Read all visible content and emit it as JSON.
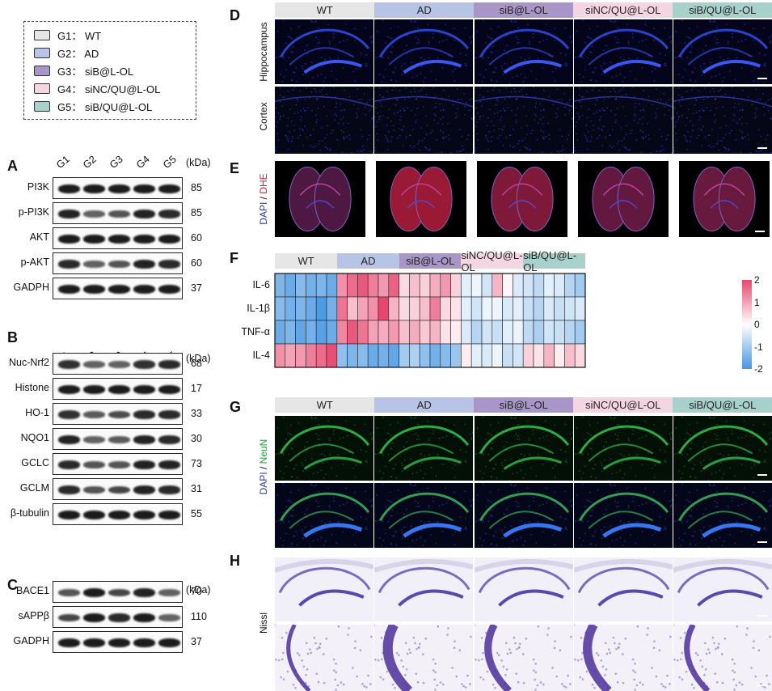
{
  "legend": [
    {
      "label": "G1： WT",
      "color": "#e6e6e6"
    },
    {
      "label": "G2： AD",
      "color": "#b8c4e6"
    },
    {
      "label": "G3： siB@L-OL",
      "color": "#a996c9"
    },
    {
      "label": "G4： siNC/QU@L-OL",
      "color": "#f3d6e2"
    },
    {
      "label": "G5： siB/QU@L-OL",
      "color": "#a8d1cc"
    }
  ],
  "panels": {
    "A": "A",
    "B": "B",
    "C": "C",
    "D": "D",
    "E": "E",
    "F": "F",
    "G": "G",
    "H": "H"
  },
  "lanes": [
    "G1",
    "G2",
    "G3",
    "G4",
    "G5"
  ],
  "kda_unit": "(kDa)",
  "groups": [
    "WT",
    "AD",
    "siB@L-OL",
    "siNC/QU@L-OL",
    "siB/QU@L-OL"
  ],
  "groups_h": [
    "WT",
    "AD",
    "siB@L-OL",
    "siNC/QU@L-OL",
    "siB/QU@L-OL"
  ],
  "blotA": [
    {
      "name": "PI3K",
      "kda": "85",
      "levels": [
        1,
        1,
        1,
        1,
        1
      ]
    },
    {
      "name": "p-PI3K",
      "kda": "85",
      "levels": [
        0.95,
        0.5,
        0.6,
        0.95,
        0.9
      ]
    },
    {
      "name": "AKT",
      "kda": "60",
      "levels": [
        1,
        1,
        1,
        1,
        1
      ]
    },
    {
      "name": "p-AKT",
      "kda": "60",
      "levels": [
        0.9,
        0.5,
        0.6,
        0.95,
        0.9
      ]
    },
    {
      "name": "GADPH",
      "kda": "37",
      "levels": [
        1,
        1,
        1,
        1,
        1
      ]
    }
  ],
  "blotB": [
    {
      "name": "Nuc-Nrf2",
      "kda": "68",
      "levels": [
        0.85,
        0.5,
        0.5,
        0.85,
        0.9
      ]
    },
    {
      "name": "Histone",
      "kda": "17",
      "levels": [
        1,
        1,
        1,
        1,
        1
      ]
    },
    {
      "name": "HO-1",
      "kda": "33",
      "levels": [
        0.85,
        0.55,
        0.65,
        0.9,
        0.9
      ]
    },
    {
      "name": "NQO1",
      "kda": "30",
      "levels": [
        0.95,
        0.5,
        0.55,
        0.95,
        0.9
      ]
    },
    {
      "name": "GCLC",
      "kda": "73",
      "levels": [
        0.9,
        0.6,
        0.6,
        0.95,
        0.95
      ]
    },
    {
      "name": "GCLM",
      "kda": "31",
      "levels": [
        0.9,
        0.6,
        0.7,
        0.95,
        0.9
      ]
    },
    {
      "name": "β-tubulin",
      "kda": "55",
      "levels": [
        1,
        1,
        1,
        1,
        1
      ]
    }
  ],
  "blotC": [
    {
      "name": "BACE1",
      "kda": "70",
      "levels": [
        0.6,
        1,
        0.7,
        0.95,
        0.5
      ]
    },
    {
      "name": "sAPPβ",
      "kda": "110",
      "levels": [
        0.7,
        1,
        0.9,
        1,
        0.5
      ]
    },
    {
      "name": "GADPH",
      "kda": "37",
      "levels": [
        1,
        1,
        1,
        1,
        1
      ]
    }
  ],
  "D": {
    "row_labels": [
      "Hippocampus",
      "Cortex"
    ]
  },
  "E": {
    "label_dapi": "DAPI",
    "label_sep": " / ",
    "label_dhe": "DHE"
  },
  "G": {
    "label_dapi": "DAPI",
    "label_sep": " / ",
    "label_neun": "NeuN"
  },
  "H": {
    "label": "Nissl"
  },
  "heatmap": {
    "rows": [
      "IL-6",
      "IL-1β",
      "TNF-α",
      "IL-4"
    ],
    "values": [
      [
        -1.4,
        -1.6,
        -1.3,
        -1.5,
        -1.4,
        -1.6,
        1.2,
        1.6,
        1.8,
        1.4,
        1.1,
        1.7,
        0.4,
        0.7,
        0.5,
        0.9,
        1.1,
        0.5,
        -0.3,
        -0.2,
        -0.5,
        0.8,
        0.1,
        -0.4,
        -0.5,
        -0.7,
        -0.3,
        -0.4,
        -0.8,
        -1.0
      ],
      [
        -1.3,
        -1.5,
        -1.4,
        -1.6,
        -1.9,
        -1.5,
        1.5,
        0.7,
        1.0,
        1.2,
        2.0,
        0.8,
        0.4,
        0.5,
        0.7,
        1.4,
        0.4,
        0.3,
        -0.3,
        -0.5,
        -0.2,
        -0.2,
        -0.4,
        -0.3,
        -0.6,
        -0.8,
        -0.4,
        -0.6,
        -0.5,
        -0.4
      ],
      [
        -1.6,
        -1.4,
        -1.7,
        -1.5,
        -1.8,
        -1.6,
        1.3,
        1.8,
        1.5,
        1.0,
        0.9,
        1.1,
        0.7,
        0.9,
        0.6,
        0.8,
        0.3,
        0.2,
        -0.4,
        -0.8,
        -0.5,
        -0.6,
        -0.3,
        -0.2,
        -0.7,
        -0.9,
        -0.5,
        -0.6,
        -0.8,
        -1.0
      ],
      [
        1.2,
        1.0,
        1.1,
        1.4,
        1.6,
        1.9,
        -1.2,
        -1.4,
        -1.3,
        -1.6,
        -1.5,
        -1.7,
        -1.0,
        -0.9,
        -1.2,
        -1.5,
        -1.3,
        -1.1,
        0.2,
        -0.3,
        -0.4,
        -0.2,
        -0.6,
        -0.5,
        0.5,
        0.3,
        0.8,
        0.2,
        0.7,
        0.4
      ]
    ],
    "colorbar_ticks": [
      "2",
      "1",
      "0",
      "-1",
      "-2"
    ],
    "colorbar_range": [
      -2,
      2
    ]
  }
}
